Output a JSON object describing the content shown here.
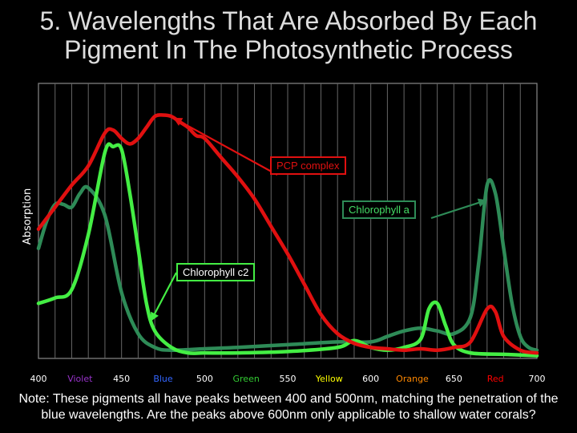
{
  "slide": {
    "title_line1": "5. Wavelengths That Are Absorbed By Each",
    "title_line2": "Pigment In The Photosynthetic Process",
    "note_line1": "Note: These pigments all have peaks between 400 and 500nm, matching the penetration of the",
    "note_line2": "blue wavelengths.  Are the peaks above 600nm only applicable to shallow water corals?"
  },
  "chart_data": {
    "type": "line",
    "title": "",
    "xlabel": "",
    "ylabel": "Absorption",
    "xlim": [
      400,
      700
    ],
    "ylim": [
      0,
      1
    ],
    "grid": true,
    "x_ticks": [
      {
        "label": "400",
        "x": 400,
        "color": "#ffffff"
      },
      {
        "label": "Violet",
        "x": 425,
        "color": "#9933cc"
      },
      {
        "label": "450",
        "x": 450,
        "color": "#ffffff"
      },
      {
        "label": "Blue",
        "x": 475,
        "color": "#3366ff"
      },
      {
        "label": "500",
        "x": 500,
        "color": "#ffffff"
      },
      {
        "label": "Green",
        "x": 525,
        "color": "#33cc33"
      },
      {
        "label": "550",
        "x": 550,
        "color": "#ffffff"
      },
      {
        "label": "Yellow",
        "x": 575,
        "color": "#ffff00"
      },
      {
        "label": "600",
        "x": 600,
        "color": "#ffffff"
      },
      {
        "label": "Orange",
        "x": 625,
        "color": "#ff8800"
      },
      {
        "label": "650",
        "x": 650,
        "color": "#ffffff"
      },
      {
        "label": "Red",
        "x": 675,
        "color": "#ff0000"
      },
      {
        "label": "700",
        "x": 700,
        "color": "#ffffff"
      }
    ],
    "series": [
      {
        "name": "PCP complex",
        "color": "#e01010",
        "x": [
          400,
          410,
          420,
          430,
          440,
          445,
          450,
          455,
          460,
          465,
          470,
          475,
          480,
          485,
          490,
          495,
          500,
          510,
          520,
          530,
          540,
          550,
          560,
          570,
          580,
          590,
          600,
          610,
          620,
          630,
          640,
          650,
          660,
          670,
          675,
          680,
          690,
          700
        ],
        "y": [
          0.47,
          0.55,
          0.63,
          0.7,
          0.82,
          0.83,
          0.8,
          0.78,
          0.8,
          0.84,
          0.88,
          0.885,
          0.88,
          0.86,
          0.84,
          0.81,
          0.8,
          0.73,
          0.66,
          0.58,
          0.48,
          0.38,
          0.27,
          0.16,
          0.09,
          0.055,
          0.04,
          0.035,
          0.03,
          0.035,
          0.03,
          0.04,
          0.06,
          0.18,
          0.17,
          0.08,
          0.03,
          0.02
        ]
      },
      {
        "name": "Chlorophyll a",
        "color": "#2e8b57",
        "x": [
          400,
          405,
          410,
          415,
          420,
          425,
          430,
          440,
          450,
          460,
          470,
          480,
          500,
          520,
          550,
          580,
          600,
          610,
          620,
          630,
          640,
          650,
          660,
          665,
          670,
          675,
          680,
          685,
          690,
          695,
          700
        ],
        "y": [
          0.4,
          0.5,
          0.56,
          0.56,
          0.55,
          0.6,
          0.62,
          0.52,
          0.24,
          0.09,
          0.04,
          0.03,
          0.035,
          0.04,
          0.05,
          0.06,
          0.06,
          0.08,
          0.1,
          0.11,
          0.1,
          0.09,
          0.15,
          0.35,
          0.63,
          0.6,
          0.4,
          0.2,
          0.08,
          0.04,
          0.03
        ]
      },
      {
        "name": "Chlorophyll c2",
        "color": "#44ee44",
        "x": [
          400,
          410,
          420,
          430,
          440,
          445,
          450,
          455,
          460,
          465,
          470,
          480,
          490,
          500,
          520,
          550,
          580,
          590,
          600,
          610,
          620,
          630,
          635,
          640,
          645,
          650,
          660,
          680,
          700
        ],
        "y": [
          0.2,
          0.22,
          0.25,
          0.45,
          0.75,
          0.77,
          0.76,
          0.6,
          0.4,
          0.2,
          0.1,
          0.04,
          0.02,
          0.02,
          0.02,
          0.025,
          0.04,
          0.065,
          0.04,
          0.03,
          0.04,
          0.07,
          0.18,
          0.2,
          0.12,
          0.05,
          0.02,
          0.015,
          0.01
        ]
      }
    ],
    "annotations": [
      {
        "text": "PCP complex",
        "series": 0,
        "target_x": 482
      },
      {
        "text": "Chlorophyll a",
        "series": 1,
        "target_x": 669
      },
      {
        "text": "Chlorophyll c2",
        "series": 2,
        "target_x": 468
      }
    ]
  }
}
